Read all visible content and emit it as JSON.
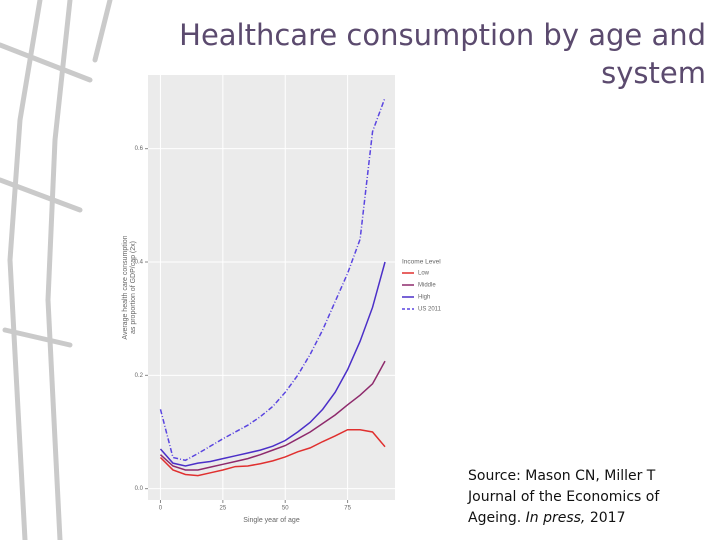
{
  "chart_data": {
    "type": "line",
    "title": "Healthcare consumption by age and system",
    "xlabel": "Single year of age",
    "ylabel": [
      "Average health care consumption",
      "as proportion of GDP/cap (2x)"
    ],
    "legend_title": "Income Level",
    "x": [
      0,
      5,
      10,
      15,
      20,
      25,
      30,
      35,
      40,
      45,
      50,
      55,
      60,
      65,
      70,
      75,
      80,
      85,
      90
    ],
    "series": [
      {
        "name": "Low",
        "color": "#e0302f",
        "dash": false,
        "values": [
          0.055,
          0.033,
          0.025,
          0.023,
          0.028,
          0.033,
          0.039,
          0.04,
          0.044,
          0.049,
          0.056,
          0.065,
          0.072,
          0.083,
          0.093,
          0.104,
          0.104,
          0.1,
          0.074
        ]
      },
      {
        "name": "Middle",
        "color": "#8e2a6c",
        "dash": false,
        "values": [
          0.06,
          0.04,
          0.033,
          0.033,
          0.038,
          0.043,
          0.048,
          0.053,
          0.06,
          0.068,
          0.076,
          0.088,
          0.1,
          0.115,
          0.13,
          0.148,
          0.165,
          0.185,
          0.225
        ]
      },
      {
        "name": "High",
        "color": "#4b2fc8",
        "dash": false,
        "values": [
          0.07,
          0.045,
          0.04,
          0.045,
          0.048,
          0.053,
          0.058,
          0.063,
          0.068,
          0.075,
          0.085,
          0.1,
          0.117,
          0.14,
          0.17,
          0.21,
          0.26,
          0.32,
          0.4
        ]
      },
      {
        "name": "US 2011",
        "color": "#5a45e0",
        "dash": true,
        "values": [
          0.14,
          0.055,
          0.05,
          0.062,
          0.075,
          0.088,
          0.1,
          0.112,
          0.127,
          0.145,
          0.17,
          0.2,
          0.237,
          0.28,
          0.33,
          0.38,
          0.44,
          0.63,
          0.69
        ]
      }
    ],
    "xlim": [
      -5,
      94
    ],
    "ylim": [
      -0.02,
      0.73
    ],
    "xticks": [
      0,
      25,
      50,
      75
    ],
    "yticks": [
      {
        "value": 0,
        "label": "0.0"
      },
      0.2,
      0.4,
      0.6
    ],
    "grid": true
  },
  "source": {
    "text": "Source: Mason CN, Miller T Journal of the Economics of Ageing.",
    "italic": "In press,",
    "year": "2017"
  }
}
